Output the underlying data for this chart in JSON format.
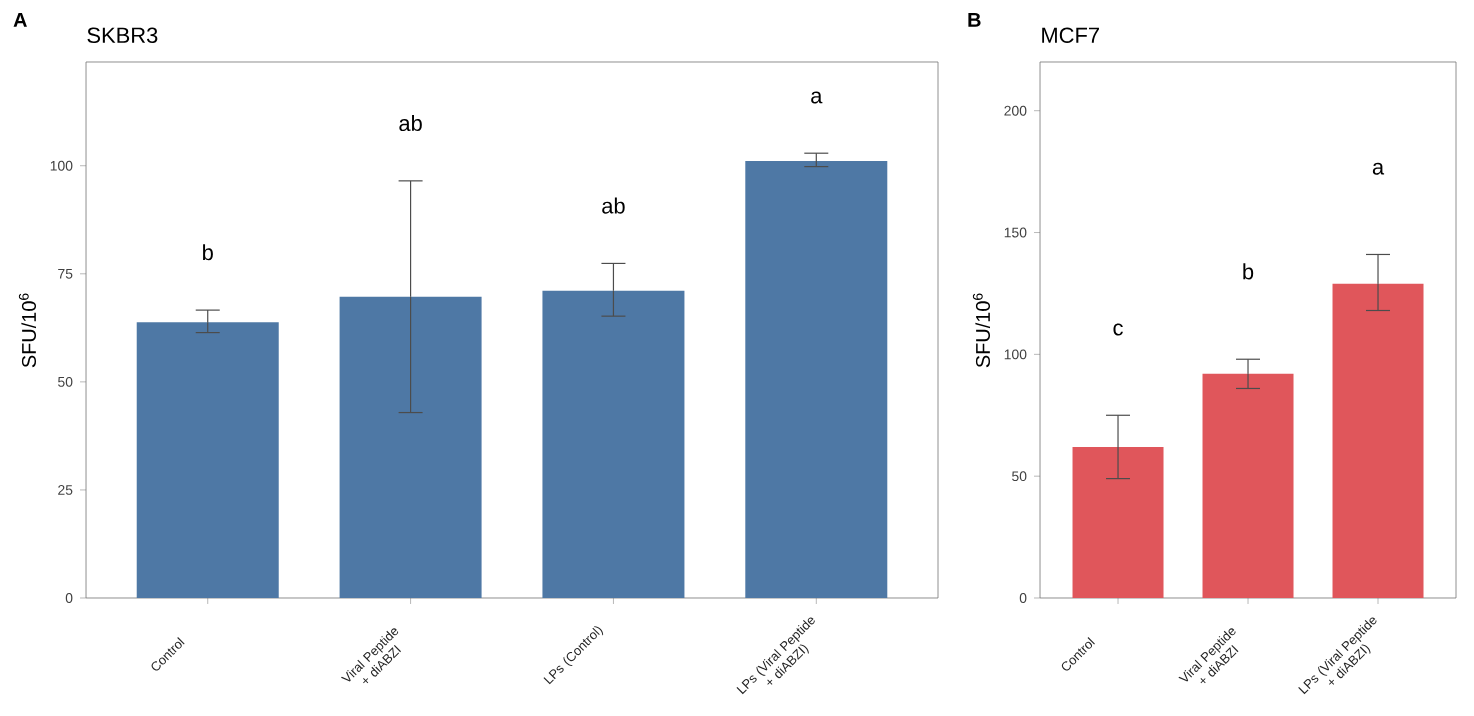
{
  "chart_data": [
    {
      "type": "bar",
      "title": "SKBR3",
      "ylabel": "SFU/10$^{6}$",
      "categories": [
        "Control",
        "Viral Peptide + diABZI",
        "LPs (Control)",
        "LPs (Viral Peptide + diABZI)"
      ],
      "values": [
        63.8,
        69.7,
        71.1,
        101.1
      ],
      "color": "#4e78a5",
      "errors": [
        [
          61.4,
          66.6
        ],
        [
          42.9,
          96.5
        ],
        [
          65.2,
          77.4
        ],
        [
          99.8,
          102.9
        ]
      ],
      "ylim": [
        0,
        124
      ],
      "yticks": [
        0,
        25,
        50,
        75,
        100
      ],
      "annotations": [
        "A",
        "b",
        "ab",
        "ab",
        "a"
      ]
    },
    {
      "type": "bar",
      "title": "MCF7",
      "ylabel": "SFU/10$^{6}$",
      "categories": [
        "Control",
        "Viral Peptide + diABZI",
        "LPs (Viral Peptide + diABZI)"
      ],
      "values": [
        62,
        92,
        129
      ],
      "color": "#e0565b",
      "errors": [
        [
          49,
          75
        ],
        [
          86,
          98
        ],
        [
          118,
          141
        ]
      ],
      "ylim": [
        0,
        220
      ],
      "yticks": [
        0,
        50,
        100,
        150,
        200
      ],
      "annotations": [
        "B",
        "c",
        "b",
        "a"
      ]
    }
  ]
}
